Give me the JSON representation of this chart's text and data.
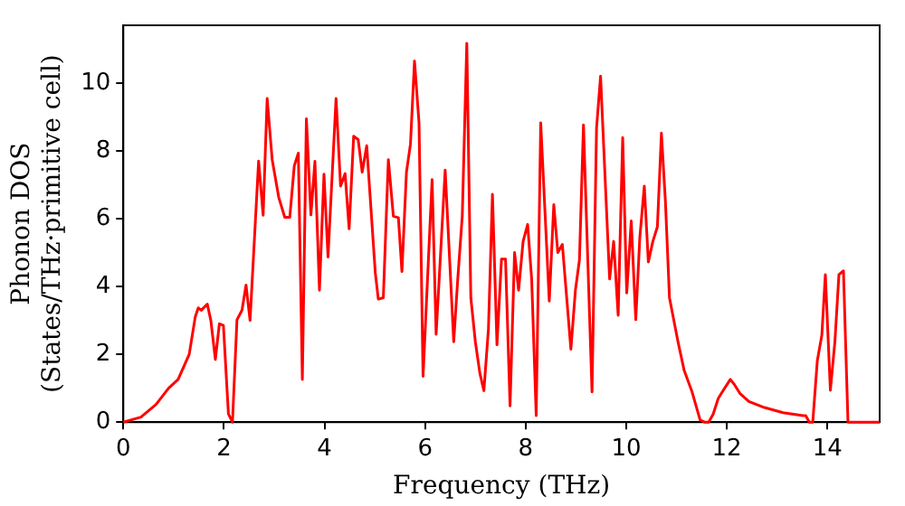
{
  "chart_data": {
    "type": "line",
    "xlabel": "Frequency (THz)",
    "ylabel": "Phonon DOS\n(States/THz·primitive cell)",
    "xlim": [
      0,
      15.04
    ],
    "ylim": [
      0,
      11.7
    ],
    "xticks": [
      0,
      2,
      4,
      6,
      8,
      10,
      12,
      14
    ],
    "yticks": [
      0,
      2,
      4,
      6,
      8,
      10
    ],
    "grid": false,
    "legend": false,
    "marker": "none",
    "line_style": "solid",
    "series": [
      {
        "color": "#ff0000",
        "x": [
          0,
          0.35,
          0.65,
          0.9,
          1.09,
          1.31,
          1.43,
          1.49,
          1.55,
          1.67,
          1.74,
          1.83,
          1.91,
          1.99,
          2.09,
          2.17,
          2.26,
          2.36,
          2.44,
          2.52,
          2.69,
          2.78,
          2.86,
          2.96,
          3.09,
          3.21,
          3.31,
          3.4,
          3.48,
          3.56,
          3.64,
          3.73,
          3.81,
          3.9,
          3.99,
          4.07,
          4.23,
          4.32,
          4.41,
          4.49,
          4.58,
          4.67,
          4.75,
          4.84,
          5.01,
          5.07,
          5.17,
          5.27,
          5.37,
          5.47,
          5.54,
          5.63,
          5.71,
          5.79,
          5.88,
          5.96,
          6.14,
          6.22,
          6.4,
          6.57,
          6.65,
          6.74,
          6.83,
          6.91,
          7.0,
          7.09,
          7.17,
          7.26,
          7.34,
          7.43,
          7.52,
          7.6,
          7.69,
          7.78,
          7.86,
          7.95,
          8.04,
          8.12,
          8.21,
          8.3,
          8.38,
          8.47,
          8.56,
          8.64,
          8.73,
          8.9,
          8.99,
          9.07,
          9.15,
          9.32,
          9.41,
          9.49,
          9.67,
          9.75,
          9.84,
          9.93,
          10.01,
          10.1,
          10.19,
          10.27,
          10.36,
          10.44,
          10.53,
          10.62,
          10.7,
          10.78,
          10.86,
          11.03,
          11.15,
          11.31,
          11.47,
          11.56,
          11.64,
          11.73,
          11.83,
          11.91,
          12.07,
          12.15,
          12.26,
          12.44,
          12.75,
          13.12,
          13.52,
          13.57,
          13.64,
          13.71,
          13.8,
          13.89,
          13.96,
          14.06,
          14.15,
          14.23,
          14.32,
          14.41,
          15.04
        ],
        "values": [
          0,
          0.15,
          0.52,
          1.0,
          1.26,
          2.0,
          3.1,
          3.37,
          3.3,
          3.48,
          3.0,
          1.85,
          2.9,
          2.85,
          0.24,
          0,
          3.02,
          3.3,
          4.04,
          3.0,
          7.7,
          6.1,
          9.54,
          7.74,
          6.63,
          6.04,
          6.04,
          7.56,
          7.93,
          1.26,
          8.94,
          6.11,
          7.69,
          3.89,
          7.31,
          4.87,
          9.54,
          6.96,
          7.33,
          5.7,
          8.43,
          8.33,
          7.37,
          8.15,
          4.41,
          3.63,
          3.67,
          7.74,
          6.07,
          6.03,
          4.44,
          7.37,
          8.2,
          10.65,
          8.82,
          1.35,
          7.15,
          2.59,
          7.43,
          2.37,
          4.22,
          6.07,
          11.17,
          3.67,
          2.37,
          1.44,
          0.93,
          2.74,
          6.72,
          2.28,
          4.81,
          4.81,
          0.48,
          5.0,
          3.89,
          5.33,
          5.83,
          4.22,
          0.19,
          8.82,
          6.35,
          3.57,
          6.41,
          5.0,
          5.24,
          2.15,
          3.89,
          4.78,
          8.76,
          0.89,
          8.67,
          10.2,
          4.22,
          5.33,
          3.15,
          8.39,
          3.81,
          5.93,
          3.02,
          5.43,
          6.96,
          4.72,
          5.33,
          5.76,
          8.52,
          6.5,
          3.67,
          2.37,
          1.54,
          0.89,
          0.06,
          0,
          0,
          0.24,
          0.7,
          0.89,
          1.26,
          1.11,
          0.85,
          0.61,
          0.43,
          0.28,
          0.19,
          0.19,
          0,
          0,
          1.81,
          2.56,
          4.35,
          0.94,
          2.37,
          4.35,
          4.46,
          0,
          0
        ]
      }
    ]
  }
}
